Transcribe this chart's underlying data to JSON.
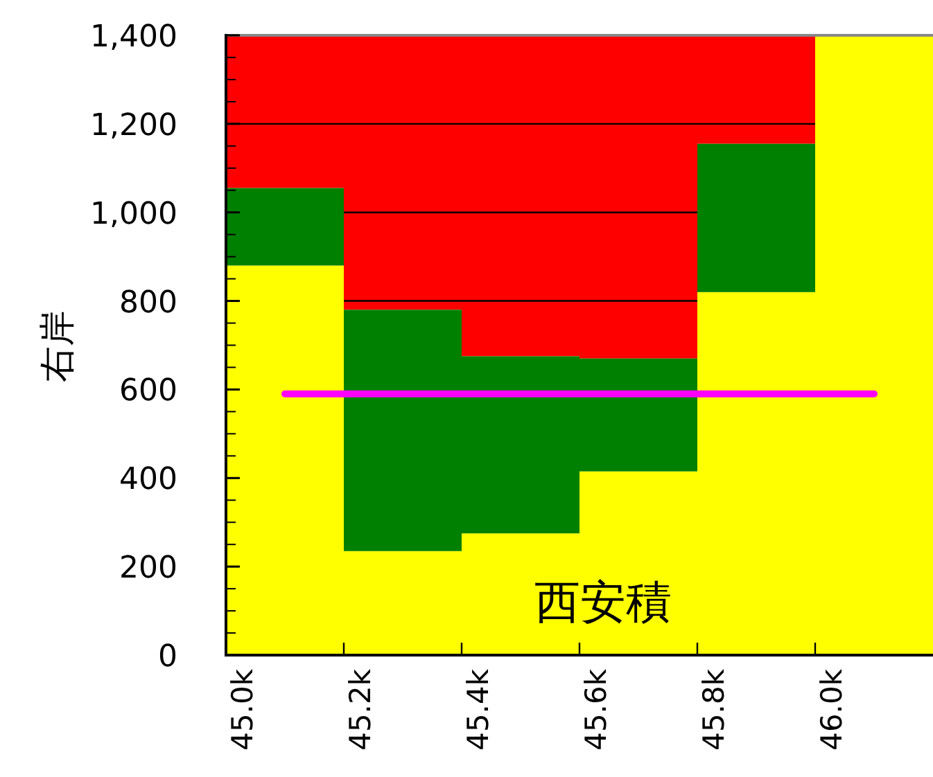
{
  "chart_data": {
    "type": "bar",
    "stacked": true,
    "ylabel": "右岸",
    "annotations": [
      "西安積"
    ],
    "categories": [
      "45.0k",
      "45.2k",
      "45.4k",
      "45.6k",
      "45.8k",
      "46.0k"
    ],
    "series": [
      {
        "color": "#ffff00",
        "values": [
          880,
          235,
          275,
          415,
          820,
          1400
        ]
      },
      {
        "color": "#008000",
        "values": [
          175,
          545,
          400,
          255,
          335,
          0
        ]
      },
      {
        "color": "#ff0000",
        "values": [
          345,
          620,
          725,
          730,
          245,
          0
        ]
      },
      {
        "type": "line",
        "color": "#ff00ff",
        "values": [
          590,
          590,
          590,
          590,
          590,
          590
        ]
      }
    ],
    "ylim": [
      0,
      1400
    ],
    "yticks": [
      0,
      200,
      400,
      600,
      800,
      {
        "value": 1000,
        "label": "1,000"
      },
      {
        "value": 1200,
        "label": "1,200"
      },
      {
        "value": 1400,
        "label": "1,400"
      }
    ],
    "grid": "y",
    "marker": "none"
  }
}
